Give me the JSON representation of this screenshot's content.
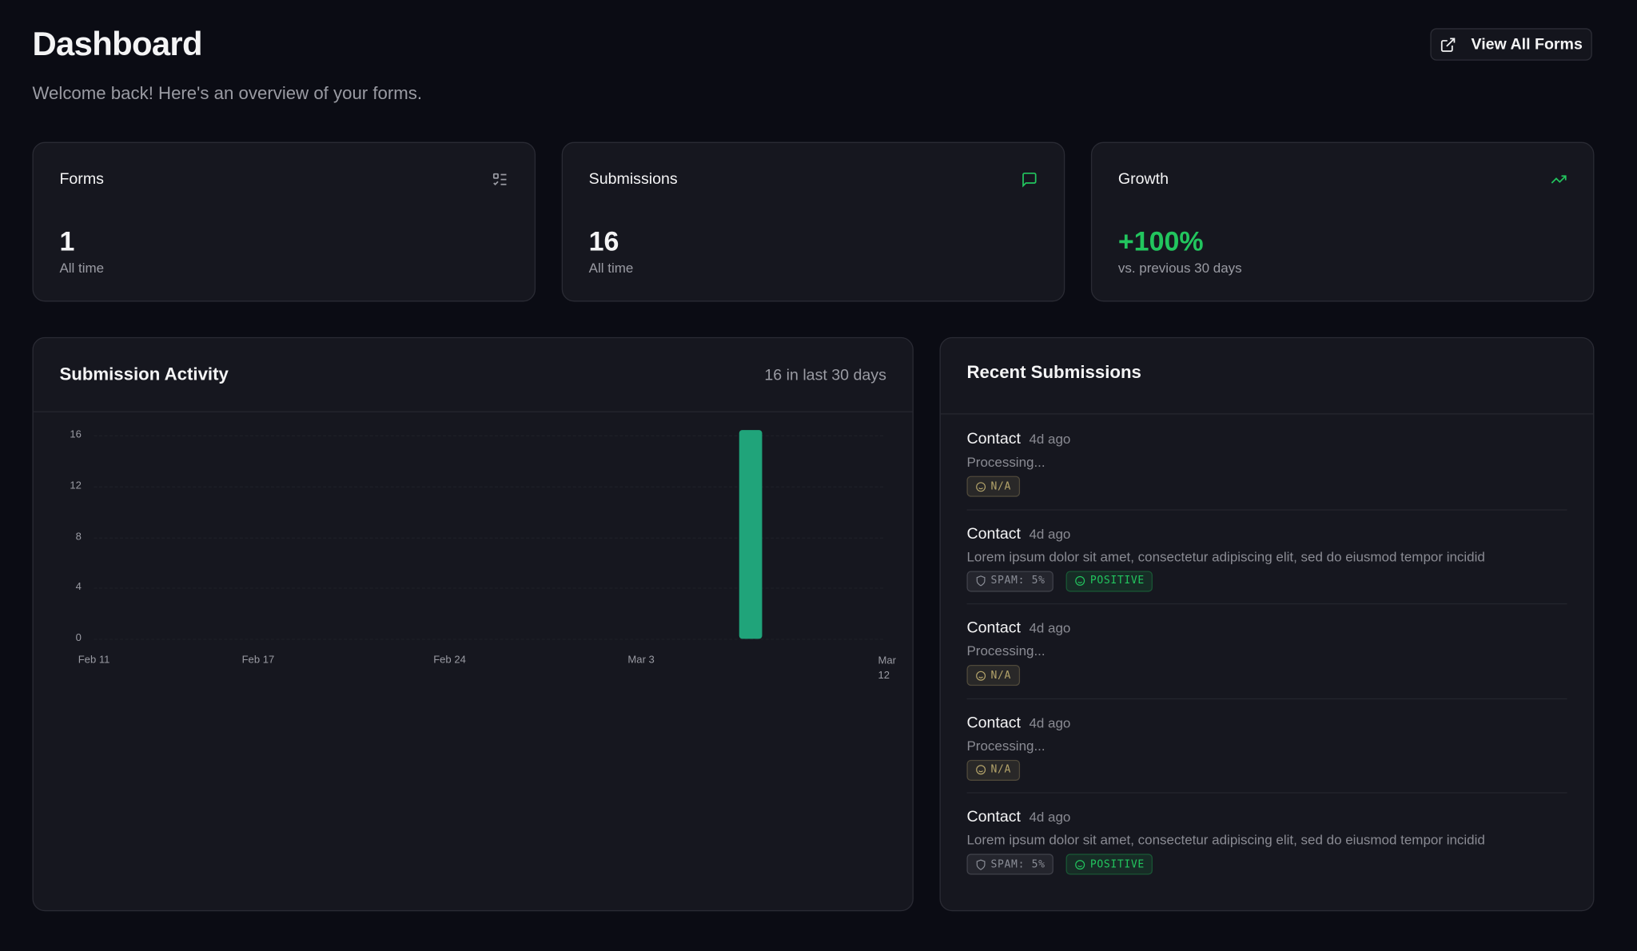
{
  "header": {
    "title": "Dashboard",
    "subtitle": "Welcome back! Here's an overview of your forms.",
    "button": "View All Forms"
  },
  "stats": [
    {
      "label": "Forms",
      "value": "1",
      "note": "All time",
      "color": "#f4f4f5"
    },
    {
      "label": "Submissions",
      "value": "16",
      "note": "All time",
      "color": "#f4f4f5"
    },
    {
      "label": "Growth",
      "value": "+100%",
      "note": "vs. previous 30 days",
      "color": "#22c55e"
    }
  ],
  "activity": {
    "title": "Submission Activity",
    "summary": "16 in last 30 days"
  },
  "chart_data": {
    "type": "bar",
    "color": "#20a47a",
    "categories": [
      "Feb 11",
      null,
      null,
      null,
      null,
      null,
      "Feb 17",
      null,
      null,
      null,
      null,
      null,
      null,
      "Feb 24",
      null,
      null,
      null,
      null,
      null,
      null,
      "Mar 3",
      null,
      null,
      null,
      null,
      null,
      null,
      null,
      null,
      "Mar 12"
    ],
    "values": [
      0,
      0,
      0,
      0,
      0,
      0,
      0,
      0,
      0,
      0,
      0,
      0,
      0,
      0,
      0,
      0,
      0,
      0,
      0,
      0,
      0,
      0,
      0,
      0,
      16,
      0,
      0,
      0,
      0,
      0
    ],
    "ylim": [
      0,
      16
    ],
    "yticks": [
      0,
      4,
      8,
      12,
      16
    ],
    "grid": true
  },
  "recent": {
    "title": "Recent Submissions",
    "items": [
      {
        "form": "Contact",
        "time": "4d ago",
        "text": "Processing...",
        "badges": [
          {
            "label": "N/A",
            "icon": "face",
            "color": "#b3a36a"
          }
        ]
      },
      {
        "form": "Contact",
        "time": "4d ago",
        "text": "Lorem ipsum dolor sit amet, consectetur adipiscing elit, sed do eiusmod tempor incidid",
        "badges": [
          {
            "label": "SPAM: 5%",
            "icon": "shield",
            "color": "#8a8d96"
          },
          {
            "label": "POSITIVE",
            "icon": "face",
            "color": "#22c55e"
          }
        ]
      },
      {
        "form": "Contact",
        "time": "4d ago",
        "text": "Processing...",
        "badges": [
          {
            "label": "N/A",
            "icon": "face",
            "color": "#b3a36a"
          }
        ]
      },
      {
        "form": "Contact",
        "time": "4d ago",
        "text": "Processing...",
        "badges": [
          {
            "label": "N/A",
            "icon": "face",
            "color": "#b3a36a"
          }
        ]
      },
      {
        "form": "Contact",
        "time": "4d ago",
        "text": "Lorem ipsum dolor sit amet, consectetur adipiscing elit, sed do eiusmod tempor incidid",
        "badges": [
          {
            "label": "SPAM: 5%",
            "icon": "shield",
            "color": "#8a8d96"
          },
          {
            "label": "POSITIVE",
            "icon": "face",
            "color": "#22c55e"
          }
        ]
      }
    ]
  }
}
